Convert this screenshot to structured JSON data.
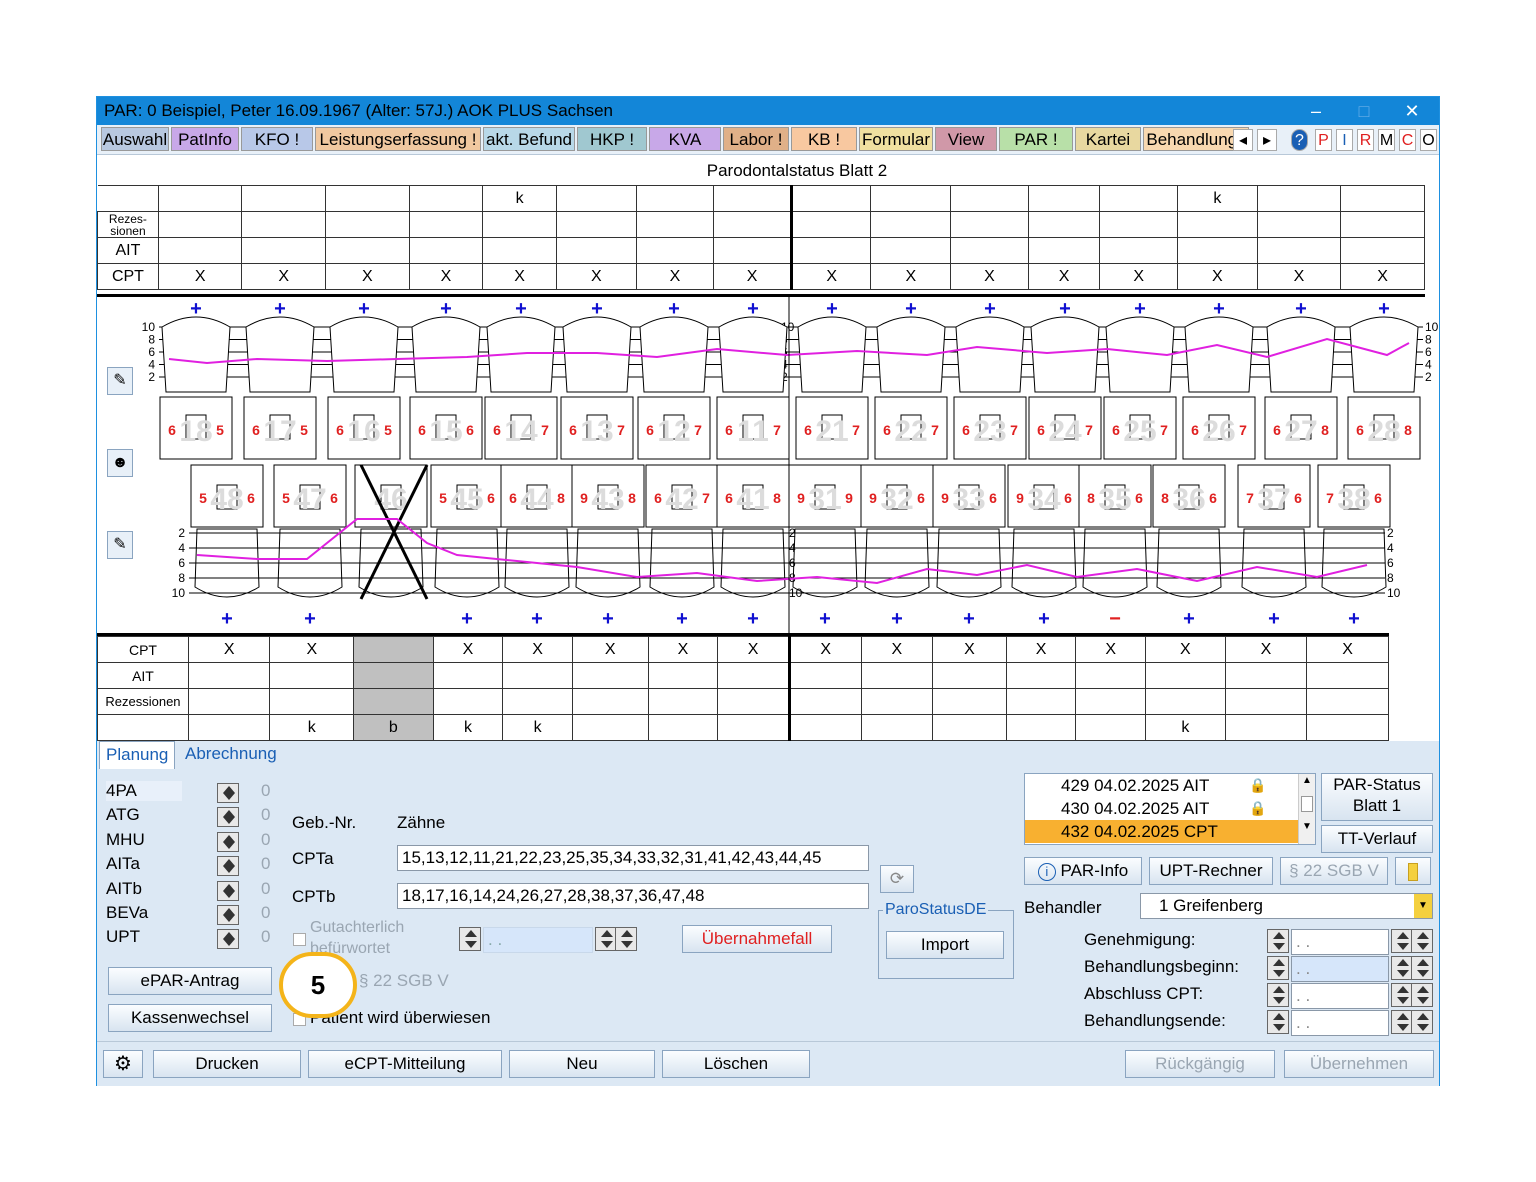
{
  "window": {
    "title": "PAR: 0  Beispiel, Peter  16.09.1967 (Alter: 57J.)  AOK PLUS Sachsen"
  },
  "tabs": [
    {
      "label": "Auswahl",
      "color": "#b8c8e0"
    },
    {
      "label": "PatInfo",
      "color": "#c8a8e8"
    },
    {
      "label": "KFO !",
      "color": "#b8c8e8"
    },
    {
      "label": "Leistungserfassung !",
      "color": "#f0c8a0"
    },
    {
      "label": "akt. Befund",
      "color": "#b8d8e8"
    },
    {
      "label": "HKP !",
      "color": "#a0c8d0"
    },
    {
      "label": "KVA",
      "color": "#c8a8e8"
    },
    {
      "label": "Labor !",
      "color": "#e0b088"
    },
    {
      "label": "KB !",
      "color": "#f8c8a0"
    },
    {
      "label": "Formular",
      "color": "#f0e0a0"
    },
    {
      "label": "View",
      "color": "#d098a8"
    },
    {
      "label": "PAR !",
      "color": "#b8e0a8"
    },
    {
      "label": "Kartei",
      "color": "#e8d8a0"
    },
    {
      "label": "Behandlungs",
      "color": "#f8d8b0"
    }
  ],
  "tab_nav": {
    "prev": "◂",
    "next": "▸"
  },
  "mini_buttons": [
    "P",
    "I",
    "R",
    "M",
    "C",
    "O"
  ],
  "help_icon": "?",
  "chart": {
    "title": "Parodontalstatus Blatt 2",
    "upper": {
      "k_row": [
        "",
        "",
        "",
        "",
        "k",
        "",
        "",
        "",
        "",
        "",
        "",
        "",
        "",
        "k",
        "",
        ""
      ],
      "labels": {
        "rez": "Rezes-\nsionen",
        "ait": "AIT",
        "cpt": "CPT"
      },
      "cpt_marks": [
        "X",
        "X",
        "X",
        "X",
        "X",
        "X",
        "X",
        "X",
        "X",
        "X",
        "X",
        "X",
        "X",
        "X",
        "X",
        "X"
      ]
    },
    "upper_pd": [
      {
        "tooth": "18",
        "left": "6",
        "right": "5"
      },
      {
        "tooth": "17",
        "left": "6",
        "right": "5"
      },
      {
        "tooth": "16",
        "left": "6",
        "right": "5"
      },
      {
        "tooth": "15",
        "left": "6",
        "right": "6"
      },
      {
        "tooth": "14",
        "left": "6",
        "right": "7"
      },
      {
        "tooth": "13",
        "left": "6",
        "right": "7"
      },
      {
        "tooth": "12",
        "left": "6",
        "right": "7"
      },
      {
        "tooth": "11",
        "left": "6",
        "right": "7"
      },
      {
        "tooth": "21",
        "left": "6",
        "right": "7"
      },
      {
        "tooth": "22",
        "left": "6",
        "right": "7"
      },
      {
        "tooth": "23",
        "left": "6",
        "right": "7"
      },
      {
        "tooth": "24",
        "left": "6",
        "right": "7"
      },
      {
        "tooth": "25",
        "left": "6",
        "right": "7"
      },
      {
        "tooth": "26",
        "left": "6",
        "right": "7"
      },
      {
        "tooth": "27",
        "left": "6",
        "right": "8"
      },
      {
        "tooth": "28",
        "left": "6",
        "right": "8"
      }
    ],
    "lower_pd": [
      {
        "tooth": "48",
        "left": "5",
        "right": "6"
      },
      {
        "tooth": "47",
        "left": "5",
        "right": "6"
      },
      {
        "tooth": "46",
        "left": "",
        "right": ""
      },
      {
        "tooth": "45",
        "left": "5",
        "right": "6"
      },
      {
        "tooth": "44",
        "left": "6",
        "right": "8"
      },
      {
        "tooth": "43",
        "left": "9",
        "right": "8"
      },
      {
        "tooth": "42",
        "left": "6",
        "right": "7"
      },
      {
        "tooth": "41",
        "left": "6",
        "right": "8"
      },
      {
        "tooth": "31",
        "left": "9",
        "right": "9"
      },
      {
        "tooth": "32",
        "left": "9",
        "right": "6"
      },
      {
        "tooth": "33",
        "left": "9",
        "right": "6"
      },
      {
        "tooth": "34",
        "left": "9",
        "right": "6"
      },
      {
        "tooth": "35",
        "left": "8",
        "right": "6"
      },
      {
        "tooth": "36",
        "left": "8",
        "right": "6"
      },
      {
        "tooth": "37",
        "left": "7",
        "right": "6"
      },
      {
        "tooth": "38",
        "left": "7",
        "right": "6"
      }
    ],
    "scale_top": [
      "10",
      "8",
      "6",
      "4",
      "2"
    ],
    "scale_bottom": [
      "2",
      "4",
      "6",
      "8",
      "10"
    ],
    "lower": {
      "labels": {
        "cpt": "CPT",
        "ait": "AIT",
        "rez": "Rezessionen"
      },
      "cpt_marks": [
        "X",
        "X",
        "",
        "X",
        "X",
        "X",
        "X",
        "X",
        "X",
        "X",
        "X",
        "X",
        "X",
        "X",
        "X",
        "X"
      ],
      "k_row": [
        "",
        "k",
        "b",
        "k",
        "k",
        "",
        "",
        "",
        "",
        "",
        "",
        "",
        "",
        "k",
        "",
        ""
      ]
    },
    "lower_marks": [
      "+",
      "+",
      "",
      "+",
      "+",
      "+",
      "+",
      "+",
      "+",
      "+",
      "+",
      "+",
      "−",
      "+",
      "+",
      "+"
    ]
  },
  "subtabs": {
    "planung": "Planung",
    "abrechnung": "Abrechnung"
  },
  "counters": [
    {
      "label": "4PA",
      "value": "0"
    },
    {
      "label": "ATG",
      "value": "0"
    },
    {
      "label": "MHU",
      "value": "0"
    },
    {
      "label": "AITa",
      "value": "0"
    },
    {
      "label": "AITb",
      "value": "0"
    },
    {
      "label": "BEVa",
      "value": "0"
    },
    {
      "label": "UPT",
      "value": "0"
    }
  ],
  "form": {
    "gebnr": "Geb.-Nr.",
    "zaehne": "Zähne",
    "cpta_label": "CPTa",
    "cpta_value": "15,13,12,11,21,22,23,25,35,34,33,32,31,41,42,43,44,45",
    "cptb_label": "CPTb",
    "cptb_value": "18,17,16,14,24,26,27,28,38,37,36,47,48",
    "gutachterlich": "Gutachterlich",
    "befuerwortet": "befürwortet",
    "sgb": "§ 22 SGB V",
    "ueberwiesen": "Patient wird überwiesen",
    "uebernahmefall": "Übernahmefall",
    "date_placeholder": " .  . "
  },
  "buttons": {
    "epar": "ePAR-Antrag",
    "kassenwechsel": "Kassenwechsel",
    "import": "Import",
    "paro_group": "ParoStatusDE",
    "par_status": "PAR-Status\nBlatt 1",
    "tt_verlauf": "TT-Verlauf",
    "par_info": "PAR-Info",
    "upt_rechner": "UPT-Rechner",
    "sgb_btn": "§ 22 SGB V"
  },
  "entries": [
    {
      "text": "429 04.02.2025  AIT",
      "locked": true,
      "selected": false
    },
    {
      "text": "430 04.02.2025  AIT",
      "locked": true,
      "selected": false
    },
    {
      "text": "432 04.02.2025  CPT",
      "locked": false,
      "selected": true
    }
  ],
  "behandler": {
    "label": "Behandler",
    "value": "1 Greifenberg"
  },
  "dates": [
    {
      "label": "Genehmigung:"
    },
    {
      "label": "Behandlungsbeginn:"
    },
    {
      "label": "Abschluss CPT:"
    },
    {
      "label": "Behandlungsende:"
    }
  ],
  "bottom_buttons": {
    "drucken": "Drucken",
    "ecpt": "eCPT-Mitteilung",
    "neu": "Neu",
    "loeschen": "Löschen",
    "rueckgaengig": "Rückgängig",
    "uebernehmen": "Übernehmen"
  },
  "callout": "5"
}
